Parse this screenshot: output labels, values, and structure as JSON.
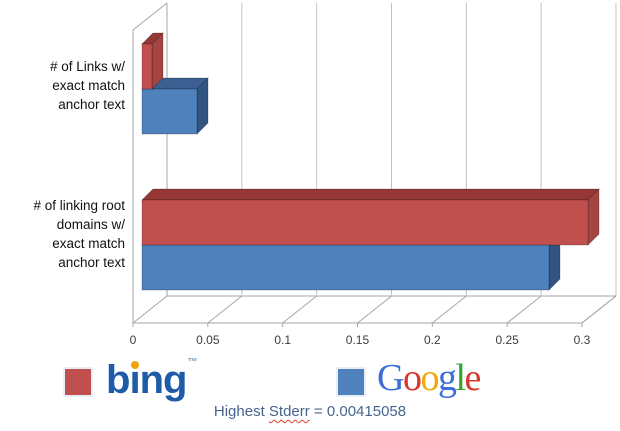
{
  "chart_data": {
    "type": "bar",
    "orientation": "horizontal",
    "style": "3d",
    "title": "",
    "categories": [
      "# of Links w/ exact match anchor text",
      "# of linking root domains w/ exact match anchor text"
    ],
    "series": [
      {
        "name": "bing",
        "color": "#C0504D",
        "values": [
          0.007,
          0.298
        ]
      },
      {
        "name": "Google",
        "color": "#4F81BD",
        "values": [
          0.037,
          0.272
        ]
      }
    ],
    "xlim": [
      0,
      0.3
    ],
    "xticks": [
      0,
      0.05,
      0.1,
      0.15,
      0.2,
      0.25,
      0.3
    ],
    "xtick_labels": [
      "0",
      "0.05",
      "0.1",
      "0.15",
      "0.2",
      "0.25",
      "0.3"
    ],
    "grid": "vertical",
    "legend_position": "bottom",
    "annotation": "Highest Stderr = 0.00415058"
  },
  "labels": {
    "cat1": "# of Links w/\nexact match\nanchor text",
    "cat2": "# of linking root\ndomains w/\nexact match\nanchor text"
  },
  "legend": {
    "items": [
      {
        "name": "bing",
        "label": "bing",
        "swatch_color": "#C0504D",
        "trademark": "™"
      },
      {
        "name": "Google",
        "label": "Google",
        "swatch_color": "#4F81BD"
      }
    ],
    "bing_text_color": "#1E5CA8",
    "bing_dot_color": "#F0A30A",
    "bing_tm_color": "#6FA0C8",
    "google_letter_colors": [
      "#3E6FD8",
      "#D7392E",
      "#EFA90C",
      "#3E6FD8",
      "#35A12F",
      "#D7392E"
    ]
  },
  "caption": {
    "prefix": "Highest ",
    "highlighted_word": "Stderr",
    "suffix": " = 0.00415058",
    "color": "#46648C"
  },
  "colors": {
    "bing_front": "#C0504D",
    "bing_top": "#953735",
    "bing_side": "#A54441",
    "google_front": "#4F81BD",
    "google_top": "#3A5F90",
    "google_side": "#325480",
    "gridline": "#C4C4C4",
    "frame": "#A6A6A6",
    "tick_text": "#3D3D3D"
  }
}
